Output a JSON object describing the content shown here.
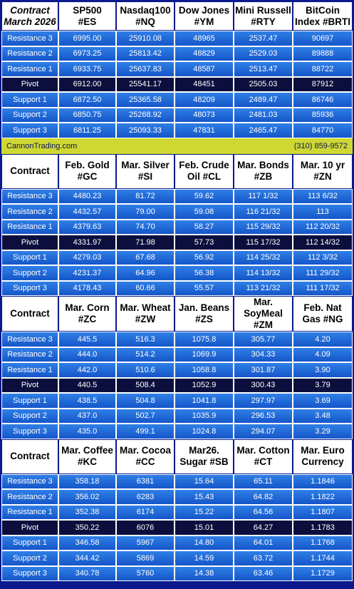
{
  "contract_label": "Contract",
  "section1": {
    "first_header": [
      "Contract",
      "March 2026"
    ],
    "headers": [
      [
        "SP500",
        "#ES"
      ],
      [
        "Nasdaq100",
        "#NQ"
      ],
      [
        "Dow Jones",
        "#YM"
      ],
      [
        "Mini Russell",
        "#RTY"
      ],
      [
        "BitCoin",
        "Index #BRTI"
      ]
    ],
    "rows": [
      {
        "label": "Resistance 3",
        "values": [
          "6995.00",
          "25910.08",
          "48965",
          "2537.47",
          "90697"
        ]
      },
      {
        "label": "Resistance 2",
        "values": [
          "6973.25",
          "25813.42",
          "48829",
          "2529.03",
          "89888"
        ]
      },
      {
        "label": "Resistance 1",
        "values": [
          "6933.75",
          "25637.83",
          "48587",
          "2513.47",
          "88722"
        ]
      },
      {
        "label": "Pivot",
        "values": [
          "6912.00",
          "25541.17",
          "48451",
          "2505.03",
          "87912"
        ]
      },
      {
        "label": "Support 1",
        "values": [
          "6872.50",
          "25365.58",
          "48209",
          "2489.47",
          "86746"
        ]
      },
      {
        "label": "Support 2",
        "values": [
          "6850.75",
          "25268.92",
          "48073",
          "2481.03",
          "85936"
        ]
      },
      {
        "label": "Support 3",
        "values": [
          "6811.25",
          "25093.33",
          "47831",
          "2465.47",
          "84770"
        ]
      }
    ]
  },
  "banner": {
    "left": "CannonTrading.com",
    "right": "(310) 859-9572"
  },
  "section2": {
    "headers": [
      [
        "Feb. Gold",
        "#GC"
      ],
      [
        "Mar. Silver",
        "#SI"
      ],
      [
        "Feb. Crude",
        "Oil #CL"
      ],
      [
        "Mar. Bonds",
        "#ZB"
      ],
      [
        "Mar. 10 yr",
        "#ZN"
      ]
    ],
    "rows": [
      {
        "label": "Resistance 3",
        "values": [
          "4480.23",
          "81.72",
          "59.62",
          "117  1/32",
          "113  6/32"
        ]
      },
      {
        "label": "Resistance 2",
        "values": [
          "4432.57",
          "79.00",
          "59.08",
          "116 21/32",
          "113"
        ]
      },
      {
        "label": "Resistance 1",
        "values": [
          "4379.63",
          "74.70",
          "58.27",
          "115 29/32",
          "112 20/32"
        ]
      },
      {
        "label": "Pivot",
        "values": [
          "4331.97",
          "71.98",
          "57.73",
          "115 17/32",
          "112 14/32"
        ]
      },
      {
        "label": "Support 1",
        "values": [
          "4279.03",
          "67.68",
          "56.92",
          "114 25/32",
          "112  3/32"
        ]
      },
      {
        "label": "Support 2",
        "values": [
          "4231.37",
          "64.96",
          "56.38",
          "114 13/32",
          "111 29/32"
        ]
      },
      {
        "label": "Support 3",
        "values": [
          "4178.43",
          "60.66",
          "55.57",
          "113 21/32",
          "111 17/32"
        ]
      }
    ]
  },
  "section3": {
    "headers": [
      [
        "Mar. Corn",
        "#ZC"
      ],
      [
        "Mar.  Wheat",
        "#ZW"
      ],
      [
        "Jan. Beans",
        "#ZS"
      ],
      [
        "Mar.",
        "SoyMeal",
        "#ZM"
      ],
      [
        "Feb. Nat",
        "Gas #NG"
      ]
    ],
    "rows": [
      {
        "label": "Resistance 3",
        "values": [
          "445.5",
          "516.3",
          "1075.8",
          "305.77",
          "4.20"
        ]
      },
      {
        "label": "Resistance 2",
        "values": [
          "444.0",
          "514.2",
          "1069.9",
          "304.33",
          "4.09"
        ]
      },
      {
        "label": "Resistance 1",
        "values": [
          "442.0",
          "510.6",
          "1058.8",
          "301.87",
          "3.90"
        ]
      },
      {
        "label": "Pivot",
        "values": [
          "440.5",
          "508.4",
          "1052.9",
          "300.43",
          "3.79"
        ]
      },
      {
        "label": "Support 1",
        "values": [
          "438.5",
          "504.8",
          "1041.8",
          "297.97",
          "3.69"
        ]
      },
      {
        "label": "Support 2",
        "values": [
          "437.0",
          "502.7",
          "1035.9",
          "296.53",
          "3.48"
        ]
      },
      {
        "label": "Support 3",
        "values": [
          "435.0",
          "499.1",
          "1024.8",
          "294.07",
          "3.29"
        ]
      }
    ]
  },
  "section4": {
    "headers": [
      [
        "Mar. Coffee",
        "#KC"
      ],
      [
        "Mar. Cocoa",
        "#CC"
      ],
      [
        "Mar26.",
        "Sugar #SB"
      ],
      [
        "Mar. Cotton",
        "#CT"
      ],
      [
        "Mar. Euro",
        "Currency"
      ]
    ],
    "rows": [
      {
        "label": "Resistance 3",
        "values": [
          "358.18",
          "6381",
          "15.64",
          "65.11",
          "1.1846"
        ]
      },
      {
        "label": "Resistance 2",
        "values": [
          "356.02",
          "6283",
          "15.43",
          "64.82",
          "1.1822"
        ]
      },
      {
        "label": "Resistance 1",
        "values": [
          "352.38",
          "6174",
          "15.22",
          "64.56",
          "1.1807"
        ]
      },
      {
        "label": "Pivot",
        "values": [
          "350.22",
          "6076",
          "15.01",
          "64.27",
          "1.1783"
        ]
      },
      {
        "label": "Support 1",
        "values": [
          "346.58",
          "5967",
          "14.80",
          "64.01",
          "1.1768"
        ]
      },
      {
        "label": "Support 2",
        "values": [
          "344.42",
          "5869",
          "14.59",
          "63.72",
          "1.1744"
        ]
      },
      {
        "label": "Support 3",
        "values": [
          "340.78",
          "5760",
          "14.38",
          "63.46",
          "1.1729"
        ]
      }
    ]
  },
  "colors": {
    "border": "#0a1a8c",
    "row_blue": "#1f6bd6",
    "pivot": "#0c0f3d",
    "banner": "#cfd831"
  }
}
